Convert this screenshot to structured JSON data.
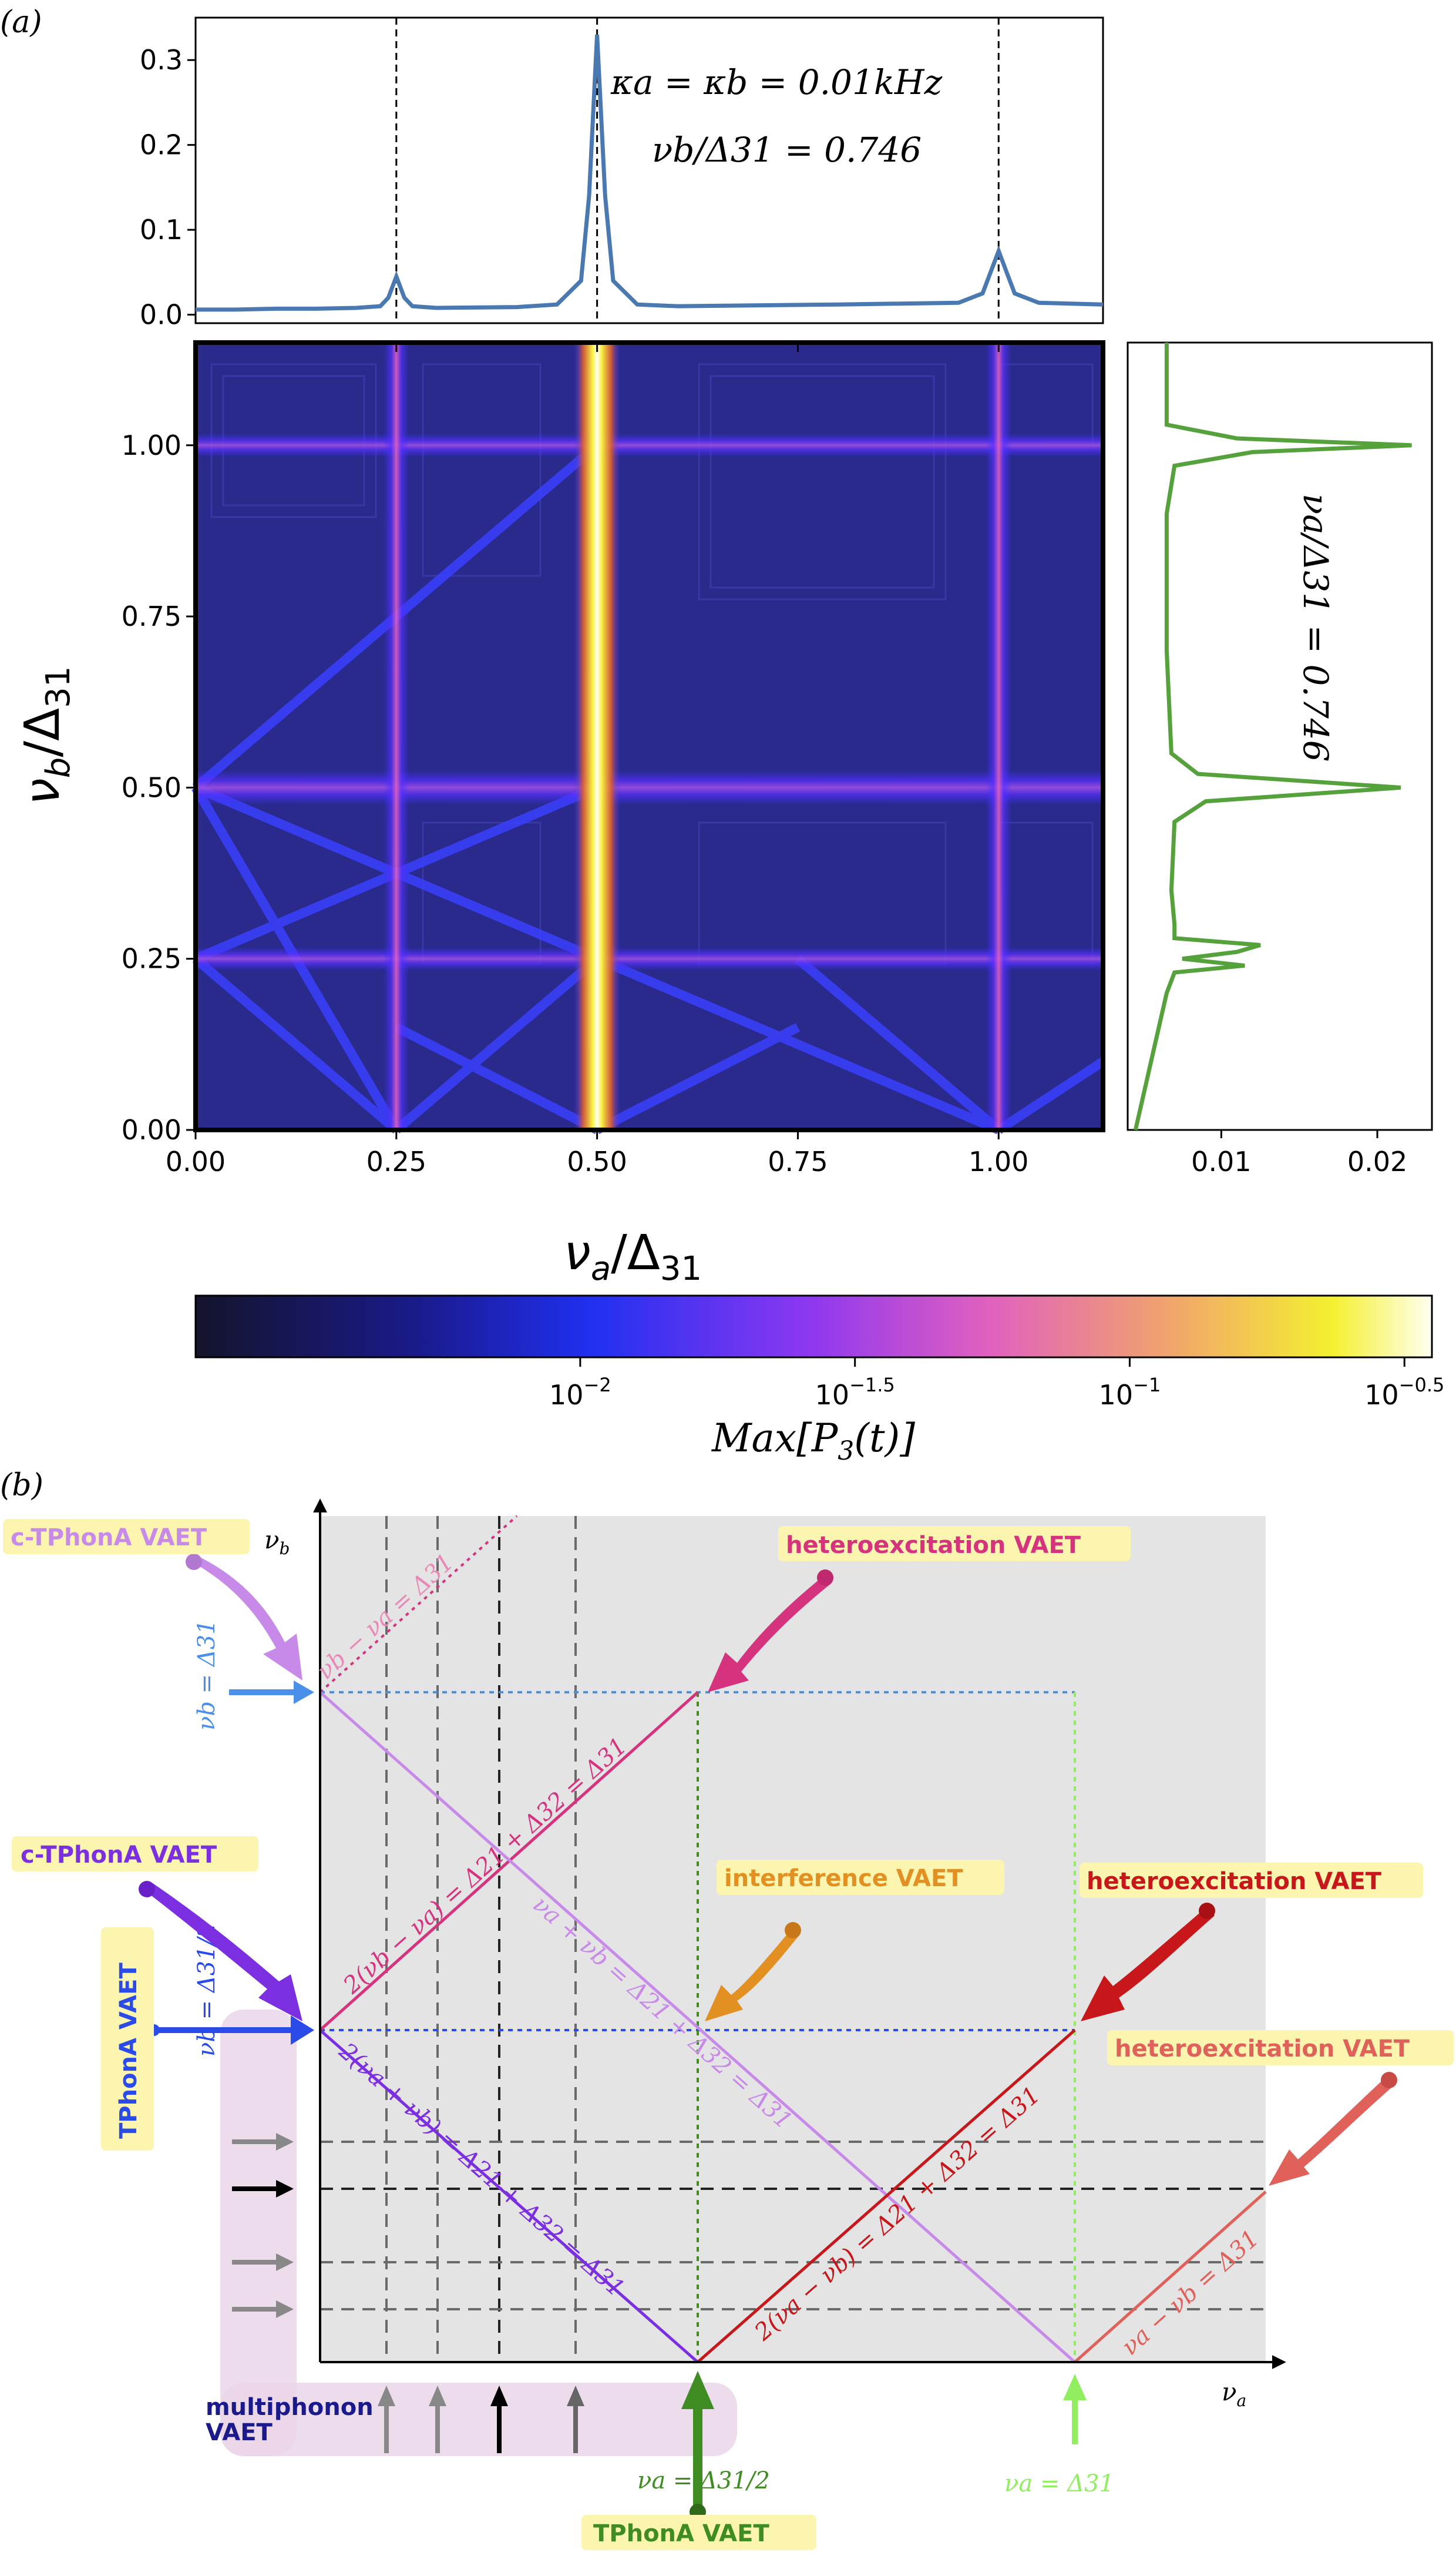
{
  "panel_a": {
    "label": "(a)",
    "annotation_kappa": "κa = κb = 0.01kHz",
    "annotation_nub": "νb/Δ31 = 0.746",
    "annotation_nua": "νa/Δ31 = 0.746",
    "colors": {
      "top_line": "#4a78b0",
      "right_line": "#55a13c",
      "dashed": "#000000"
    }
  },
  "chart_data": [
    {
      "type": "line",
      "name": "top-profile",
      "x": [
        0.0,
        0.05,
        0.1,
        0.15,
        0.2,
        0.23,
        0.24,
        0.25,
        0.26,
        0.27,
        0.3,
        0.4,
        0.45,
        0.48,
        0.49,
        0.5,
        0.51,
        0.52,
        0.55,
        0.6,
        0.8,
        0.95,
        0.98,
        0.99,
        1.0,
        1.01,
        1.02,
        1.05,
        1.13
      ],
      "y": [
        0.006,
        0.006,
        0.007,
        0.007,
        0.008,
        0.01,
        0.02,
        0.045,
        0.02,
        0.01,
        0.008,
        0.009,
        0.012,
        0.04,
        0.14,
        0.33,
        0.14,
        0.04,
        0.012,
        0.01,
        0.012,
        0.014,
        0.025,
        0.05,
        0.075,
        0.05,
        0.025,
        0.014,
        0.012
      ],
      "xlim": [
        0.0,
        1.13
      ],
      "ylim": [
        -0.01,
        0.35
      ],
      "yticks": [
        "0.0",
        "0.1",
        "0.2",
        "0.3"
      ],
      "dashed_x": [
        0.25,
        0.5,
        1.0
      ]
    },
    {
      "type": "heatmap",
      "name": "max-p3-map",
      "xlabel": "νa/Δ31",
      "ylabel": "νb/Δ31",
      "xlim": [
        0.0,
        1.13
      ],
      "ylim": [
        0.0,
        1.15
      ],
      "xticks": [
        "0.00",
        "0.25",
        "0.50",
        "0.75",
        "1.00"
      ],
      "yticks": [
        "0.00",
        "0.25",
        "0.50",
        "0.75",
        "1.00"
      ],
      "vertical_resonances": [
        0.25,
        0.5,
        1.0
      ],
      "horizontal_resonances": [
        0.25,
        0.5,
        1.0
      ]
    },
    {
      "type": "line",
      "name": "right-profile",
      "y": [
        0.0,
        0.05,
        0.1,
        0.15,
        0.2,
        0.23,
        0.24,
        0.25,
        0.26,
        0.27,
        0.28,
        0.3,
        0.35,
        0.45,
        0.48,
        0.5,
        0.52,
        0.55,
        0.7,
        0.9,
        0.97,
        0.99,
        1.0,
        1.01,
        1.03,
        1.15
      ],
      "x": [
        0.0045,
        0.005,
        0.0055,
        0.006,
        0.0065,
        0.007,
        0.0115,
        0.0075,
        0.011,
        0.0125,
        0.007,
        0.007,
        0.0068,
        0.007,
        0.009,
        0.0215,
        0.0085,
        0.0068,
        0.0065,
        0.0065,
        0.007,
        0.012,
        0.0222,
        0.011,
        0.0065,
        0.0065
      ],
      "xlim": [
        0.004,
        0.0235
      ],
      "ylim": [
        0.0,
        1.15
      ],
      "xticks": [
        "0.01",
        "0.02"
      ]
    },
    {
      "type": "colorbar",
      "label": "Max[P3(t)]",
      "ticks": [
        "10−2",
        "10−1.5",
        "10−1",
        "10−0.5"
      ],
      "range_log10": [
        -2.7,
        -0.45
      ]
    }
  ],
  "panel_b": {
    "label": "(b)",
    "axis_x": "νa",
    "axis_y": "νb",
    "line_labels": {
      "diff_top": "νb − νa = Δ31",
      "two_diff": "2(νb − νa) = Δ21 + Δ32 = Δ31",
      "sum": "νa + νb = Δ21 + Δ32 = Δ31",
      "two_sum": "2(νa + νb) = Δ21 + Δ32 = Δ31",
      "two_diff_a": "2(νa − νb) = Δ21 + Δ32 = Δ31",
      "diff_a": "νa − νb = Δ31"
    },
    "markers": {
      "nub_full": "νb = Δ31",
      "nub_half": "νb = Δ31/2",
      "nua_half": "νa = Δ31/2",
      "nua_full": "νa = Δ31"
    },
    "tags": {
      "ctphona_top": "c-TPhonA VAET",
      "hetero_top": "heteroexcitation VAET",
      "ctphona_mid": "c-TPhonA VAET",
      "interference": "interference VAET",
      "hetero_right": "heteroexcitation VAET",
      "hetero_low": "heteroexcitation VAET",
      "tphona_left": "TPhonA VAET",
      "multiphonon_1": "multiphonon",
      "multiphonon_2": "VAET",
      "tphona_bottom": "TPhonA VAET"
    },
    "colors": {
      "pink": "#d6337f",
      "lavender": "#c88ae8",
      "violet": "#7b2fe0",
      "blue": "#2a4be8",
      "lightblue": "#4a90e8",
      "red": "#c8171b",
      "salmon": "#e0605a",
      "orange": "#e39022",
      "green": "#3f8c22",
      "lightgreen": "#90ee60",
      "tag_bg": "#fbf5b0"
    }
  }
}
